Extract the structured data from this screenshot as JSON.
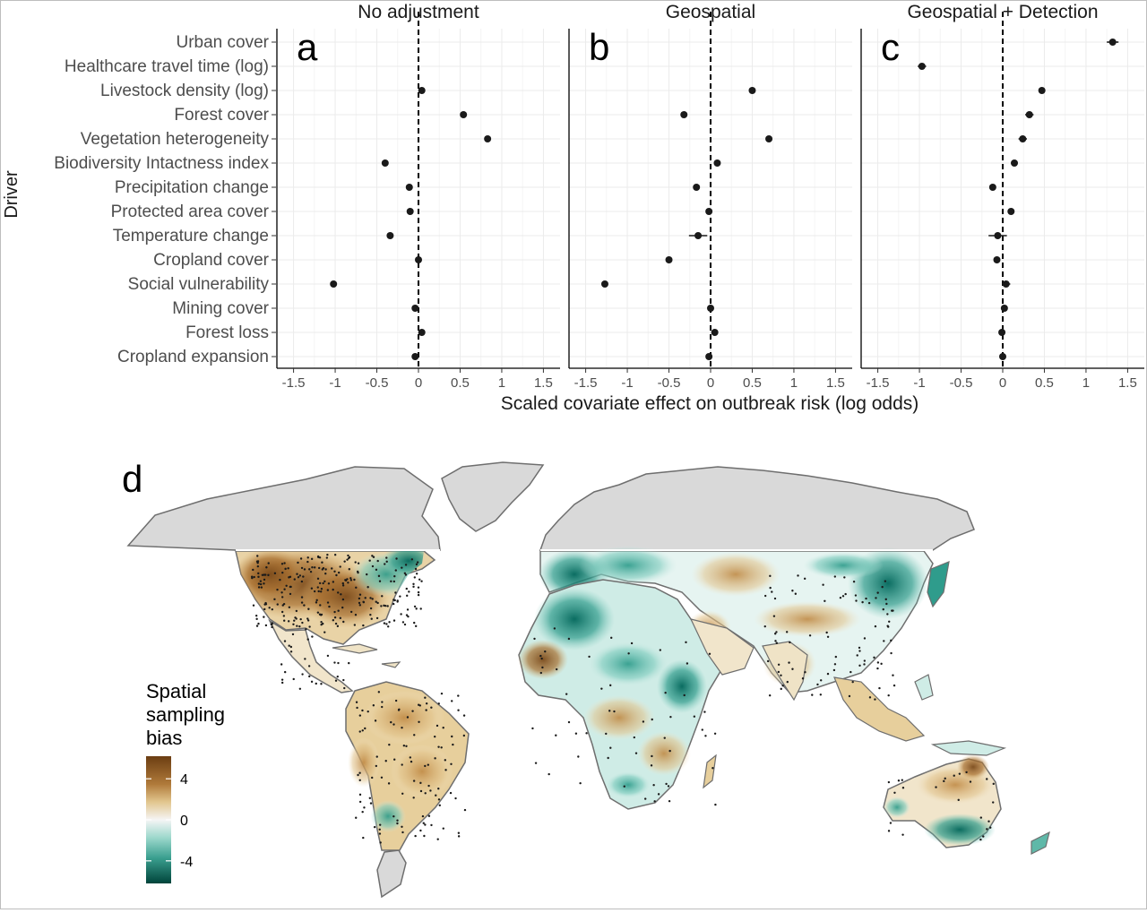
{
  "chart_data": [
    {
      "type": "scatter",
      "subtype": "forest-plot / dot-and-whisker, faceted",
      "ylabel": "Driver",
      "xlabel": "Scaled covariate effect on outbreak risk (log odds)",
      "xlim": [
        -1.7,
        1.7
      ],
      "x_ticks": [
        -1.5,
        -1,
        -0.5,
        0,
        0.5,
        1,
        1.5
      ],
      "x_tick_labels": [
        "-1.5",
        "-1",
        "-0.5",
        "0",
        "0.5",
        "1",
        "1.5"
      ],
      "reference_line": 0,
      "grid": true,
      "categories": [
        "Urban cover",
        "Healthcare travel time (log)",
        "Livestock density (log)",
        "Forest cover",
        "Vegetation heterogeneity",
        "Biodiversity Intactness index",
        "Precipitation change",
        "Protected area cover",
        "Temperature change",
        "Cropland cover",
        "Social vulnerability",
        "Mining cover",
        "Forest loss",
        "Cropland expansion"
      ],
      "panels": [
        {
          "letter": "a",
          "title": "No adjustment",
          "values": [
            null,
            null,
            0.04,
            0.54,
            0.83,
            -0.4,
            -0.11,
            -0.1,
            -0.34,
            0.0,
            -1.02,
            -0.04,
            0.04,
            -0.04
          ],
          "ci_low": [
            null,
            null,
            0.02,
            0.52,
            0.81,
            -0.42,
            -0.13,
            -0.12,
            -0.37,
            -0.02,
            -1.04,
            -0.06,
            0.02,
            -0.06
          ],
          "ci_high": [
            null,
            null,
            0.06,
            0.56,
            0.85,
            -0.38,
            -0.09,
            -0.08,
            -0.31,
            0.02,
            -1.0,
            -0.02,
            0.06,
            -0.02
          ]
        },
        {
          "letter": "b",
          "title": "Geospatial",
          "values": [
            null,
            null,
            0.5,
            -0.32,
            0.7,
            0.08,
            -0.17,
            -0.02,
            -0.15,
            -0.5,
            -1.27,
            0.0,
            0.05,
            -0.02
          ],
          "ci_low": [
            null,
            null,
            0.47,
            -0.36,
            0.67,
            0.05,
            -0.21,
            -0.04,
            -0.26,
            -0.53,
            -1.3,
            -0.02,
            0.03,
            -0.04
          ],
          "ci_high": [
            null,
            null,
            0.53,
            -0.28,
            0.73,
            0.11,
            -0.13,
            0.0,
            -0.04,
            -0.47,
            -1.24,
            0.02,
            0.07,
            0.0
          ]
        },
        {
          "letter": "c",
          "title": "Geospatial + Detection",
          "values": [
            1.32,
            -0.97,
            0.47,
            0.32,
            0.24,
            0.14,
            -0.12,
            0.1,
            -0.06,
            -0.07,
            0.04,
            0.02,
            -0.01,
            0.0
          ],
          "ci_low": [
            1.25,
            -1.02,
            0.43,
            0.27,
            0.19,
            0.1,
            -0.16,
            0.07,
            -0.17,
            -0.1,
            -0.01,
            0.0,
            -0.03,
            -0.02
          ],
          "ci_high": [
            1.39,
            -0.92,
            0.51,
            0.37,
            0.29,
            0.18,
            -0.08,
            0.13,
            0.05,
            -0.04,
            0.09,
            0.04,
            0.01,
            0.02
          ]
        }
      ]
    },
    {
      "type": "heatmap",
      "subtype": "choropleth world map",
      "panel_letter": "d",
      "legend_title": [
        "Spatial",
        "sampling",
        "bias"
      ],
      "legend_ticks": [
        4,
        0,
        -4
      ],
      "legend_tick_labels": [
        "4",
        "0",
        "-4"
      ],
      "legend_range": [
        -6.2,
        6.2
      ],
      "colors": {
        "high": "#7b4a1a",
        "mid_high": "#d7b071",
        "zero": "#f5f5f5",
        "mid_low": "#7ccbbd",
        "low": "#004b3e",
        "no_data": "#d9d9d9",
        "coast": "#6e6e6e",
        "reference_line": "#000000",
        "point": "#1a1a1a"
      }
    }
  ]
}
